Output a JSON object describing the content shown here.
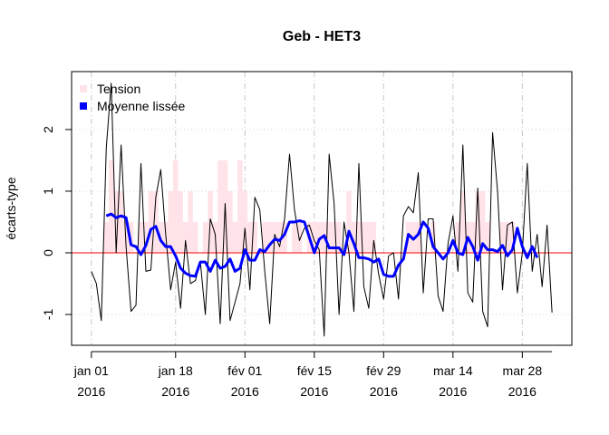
{
  "chart_data": {
    "type": "bar-line",
    "title": "Geb - HET3",
    "ylabel": "écarts-type",
    "x": [
      "2016-01-01",
      "2016-01-02",
      "2016-01-03",
      "2016-01-04",
      "2016-01-05",
      "2016-01-06",
      "2016-01-07",
      "2016-01-08",
      "2016-01-09",
      "2016-01-10",
      "2016-01-11",
      "2016-01-12",
      "2016-01-13",
      "2016-01-14",
      "2016-01-15",
      "2016-01-16",
      "2016-01-17",
      "2016-01-18",
      "2016-01-19",
      "2016-01-20",
      "2016-01-21",
      "2016-01-22",
      "2016-01-23",
      "2016-01-24",
      "2016-01-25",
      "2016-01-26",
      "2016-01-27",
      "2016-01-28",
      "2016-01-29",
      "2016-01-30",
      "2016-01-31",
      "2016-02-01",
      "2016-02-02",
      "2016-02-03",
      "2016-02-04",
      "2016-02-05",
      "2016-02-06",
      "2016-02-07",
      "2016-02-08",
      "2016-02-09",
      "2016-02-10",
      "2016-02-11",
      "2016-02-12",
      "2016-02-13",
      "2016-02-14",
      "2016-02-15",
      "2016-02-16",
      "2016-02-17",
      "2016-02-18",
      "2016-02-19",
      "2016-02-20",
      "2016-02-21",
      "2016-02-22",
      "2016-02-23",
      "2016-02-24",
      "2016-02-25",
      "2016-02-26",
      "2016-02-27",
      "2016-02-28",
      "2016-02-29",
      "2016-03-01",
      "2016-03-02",
      "2016-03-03",
      "2016-03-04",
      "2016-03-05",
      "2016-03-06",
      "2016-03-07",
      "2016-03-08",
      "2016-03-09",
      "2016-03-10",
      "2016-03-11",
      "2016-03-12",
      "2016-03-13",
      "2016-03-14",
      "2016-03-15",
      "2016-03-16",
      "2016-03-17",
      "2016-03-18",
      "2016-03-19",
      "2016-03-20",
      "2016-03-21",
      "2016-03-22",
      "2016-03-23",
      "2016-03-24",
      "2016-03-25",
      "2016-03-26",
      "2016-03-27",
      "2016-03-28",
      "2016-03-29",
      "2016-03-30",
      "2016-03-31",
      "2016-04-01",
      "2016-04-02",
      "2016-04-03"
    ],
    "series": [
      {
        "name": "Tension",
        "kind": "bar",
        "color": "#ffe3e8",
        "values": [
          0,
          0,
          0,
          0.5,
          1.5,
          1.0,
          1.0,
          0.5,
          0.5,
          0,
          0.5,
          0.5,
          1.0,
          1.0,
          0.5,
          0.5,
          1.0,
          1.5,
          1.0,
          0.5,
          1.0,
          0.5,
          0,
          0.5,
          1.0,
          0.5,
          1.5,
          1.5,
          1.0,
          0.5,
          1.5,
          1.0,
          0.5,
          0.5,
          0,
          0.5,
          0.5,
          0.5,
          0.5,
          0.5,
          0,
          0.5,
          0.5,
          0,
          0.5,
          0.5,
          0.5,
          0.5,
          0.5,
          0.5,
          0.5,
          0,
          1.0,
          0.5,
          0.5,
          0.5,
          0.5,
          0.5,
          0,
          0,
          0,
          0,
          0,
          0,
          0.5,
          0.5,
          0.5,
          0,
          0,
          0.5,
          0,
          0,
          0,
          0,
          0.5,
          1.0,
          0.5,
          0.5,
          1.0,
          1.0,
          0.5,
          0,
          0,
          0.5,
          0.5,
          0.5,
          0,
          0,
          0,
          0,
          0,
          0,
          0,
          0
        ]
      },
      {
        "kind": "line",
        "color": "#000000",
        "width": 1,
        "values": [
          -0.3,
          -0.5,
          -1.1,
          1.7,
          2.75,
          0.0,
          1.75,
          0.1,
          -0.95,
          -0.85,
          1.45,
          -0.3,
          -0.28,
          0.9,
          1.35,
          0.3,
          -0.6,
          -0.15,
          -0.9,
          0.2,
          -0.5,
          -0.45,
          -0.15,
          -1.0,
          0.55,
          0.3,
          -1.15,
          0.8,
          -1.1,
          -0.8,
          -0.5,
          0.4,
          -0.6,
          0.9,
          0.7,
          -0.3,
          -1.15,
          0.3,
          0.1,
          0.55,
          1.6,
          0.7,
          0.2,
          0.4,
          0.45,
          0.2,
          0.05,
          -1.35,
          1.6,
          0.8,
          -1.0,
          0.5,
          0.0,
          -0.95,
          1.45,
          -0.55,
          -0.9,
          0.2,
          -0.35,
          -0.75,
          -0.05,
          0.0,
          -0.75,
          0.6,
          0.75,
          0.65,
          1.3,
          -0.65,
          0.55,
          0.55,
          -0.7,
          -0.95,
          0.15,
          0.6,
          -0.3,
          1.75,
          -0.65,
          -0.8,
          1.05,
          -0.95,
          -1.2,
          1.95,
          1.0,
          -0.6,
          0.45,
          0.5,
          -0.65,
          0.0,
          1.45,
          -0.3,
          0.3,
          -0.55,
          0.45,
          -0.97
        ]
      },
      {
        "name": "Moyenne lissée",
        "kind": "line",
        "color": "#0000ff",
        "width": 3,
        "values": [
          null,
          null,
          null,
          0.6,
          0.63,
          0.57,
          0.6,
          0.57,
          0.13,
          0.1,
          -0.03,
          0.12,
          0.38,
          0.43,
          0.2,
          0.1,
          0.1,
          -0.05,
          -0.25,
          -0.33,
          -0.37,
          -0.38,
          -0.15,
          -0.15,
          -0.3,
          -0.12,
          -0.25,
          -0.22,
          -0.1,
          -0.3,
          -0.25,
          0.05,
          -0.12,
          -0.12,
          0.05,
          0.02,
          0.13,
          0.22,
          0.2,
          0.3,
          0.5,
          0.5,
          0.52,
          0.5,
          0.25,
          0.0,
          0.22,
          0.28,
          0.08,
          0.08,
          0.08,
          -0.03,
          0.35,
          0.15,
          -0.08,
          -0.08,
          -0.1,
          -0.15,
          -0.1,
          -0.35,
          -0.38,
          -0.38,
          -0.2,
          -0.1,
          0.3,
          0.22,
          0.3,
          0.5,
          0.4,
          0.1,
          0.0,
          -0.1,
          0.0,
          0.2,
          0.0,
          -0.03,
          0.25,
          0.1,
          -0.12,
          0.15,
          0.05,
          0.05,
          0.02,
          0.12,
          -0.05,
          0.05,
          0.4,
          0.1,
          -0.08,
          0.1,
          -0.08,
          null,
          null,
          null
        ]
      }
    ],
    "xlim": [
      "2015-12-28",
      "2016-04-07"
    ],
    "xticks": [
      {
        "value": "2016-01-01",
        "label": "jan 01\n2016"
      },
      {
        "value": "2016-01-18",
        "label": "jan 18\n2016"
      },
      {
        "value": "2016-02-01",
        "label": "fév 01\n2016"
      },
      {
        "value": "2016-02-15",
        "label": "fév 15\n2016"
      },
      {
        "value": "2016-02-29",
        "label": "fév 29\n2016"
      },
      {
        "value": "2016-03-14",
        "label": "mar 14\n2016"
      },
      {
        "value": "2016-03-28",
        "label": "mar 28\n2016"
      }
    ],
    "ylim": [
      -1.5,
      2.94
    ],
    "yticks": [
      -1,
      0,
      1,
      2
    ],
    "grid": true,
    "reference_line": {
      "value": 0,
      "color": "#ff0000"
    },
    "legend": "topleft"
  }
}
